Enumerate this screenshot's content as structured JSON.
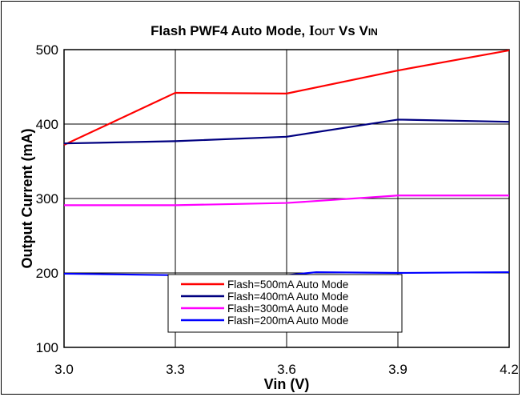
{
  "chart_data": {
    "type": "line",
    "title": {
      "main": "Flash PWF4 Auto Mode, ",
      "i": "I",
      "out": "OUT",
      "vs": " Vs ",
      "v": "V",
      "in": "IN"
    },
    "xlabel": "Vin (V)",
    "ylabel": "Output Current (mA)",
    "x": [
      3.0,
      3.3,
      3.6,
      3.9,
      4.2
    ],
    "x_tick_labels": [
      "3.0",
      "3.3",
      "3.6",
      "3.9",
      "4.2"
    ],
    "xlim": [
      3.0,
      4.2
    ],
    "y_ticks": [
      100,
      200,
      300,
      400,
      500
    ],
    "y_tick_labels": [
      "100",
      "200",
      "300",
      "400",
      "500"
    ],
    "ylim": [
      100,
      500
    ],
    "grid": true,
    "legend_position": "bottom-center",
    "series": [
      {
        "name": "Flash=500mA Auto Mode",
        "color": "#ff0000",
        "points": [
          [
            3.0,
            372
          ],
          [
            3.3,
            442
          ],
          [
            3.6,
            441
          ],
          [
            3.9,
            472
          ],
          [
            4.2,
            499
          ]
        ]
      },
      {
        "name": "Flash=400mA Auto Mode",
        "color": "#000080",
        "points": [
          [
            3.0,
            374
          ],
          [
            3.3,
            377
          ],
          [
            3.6,
            383
          ],
          [
            3.9,
            406
          ],
          [
            4.2,
            403
          ]
        ]
      },
      {
        "name": "Flash=300mA Auto Mode",
        "color": "#ff00ff",
        "points": [
          [
            3.0,
            291
          ],
          [
            3.3,
            291
          ],
          [
            3.6,
            294
          ],
          [
            3.9,
            304
          ],
          [
            4.2,
            304
          ]
        ]
      },
      {
        "name": "Flash=200mA Auto Mode",
        "color": "#0000ff",
        "points": [
          [
            3.0,
            199
          ],
          [
            3.3,
            197
          ],
          [
            3.6,
            197
          ],
          [
            3.68,
            201
          ],
          [
            3.9,
            200
          ],
          [
            4.2,
            201
          ]
        ]
      }
    ]
  }
}
